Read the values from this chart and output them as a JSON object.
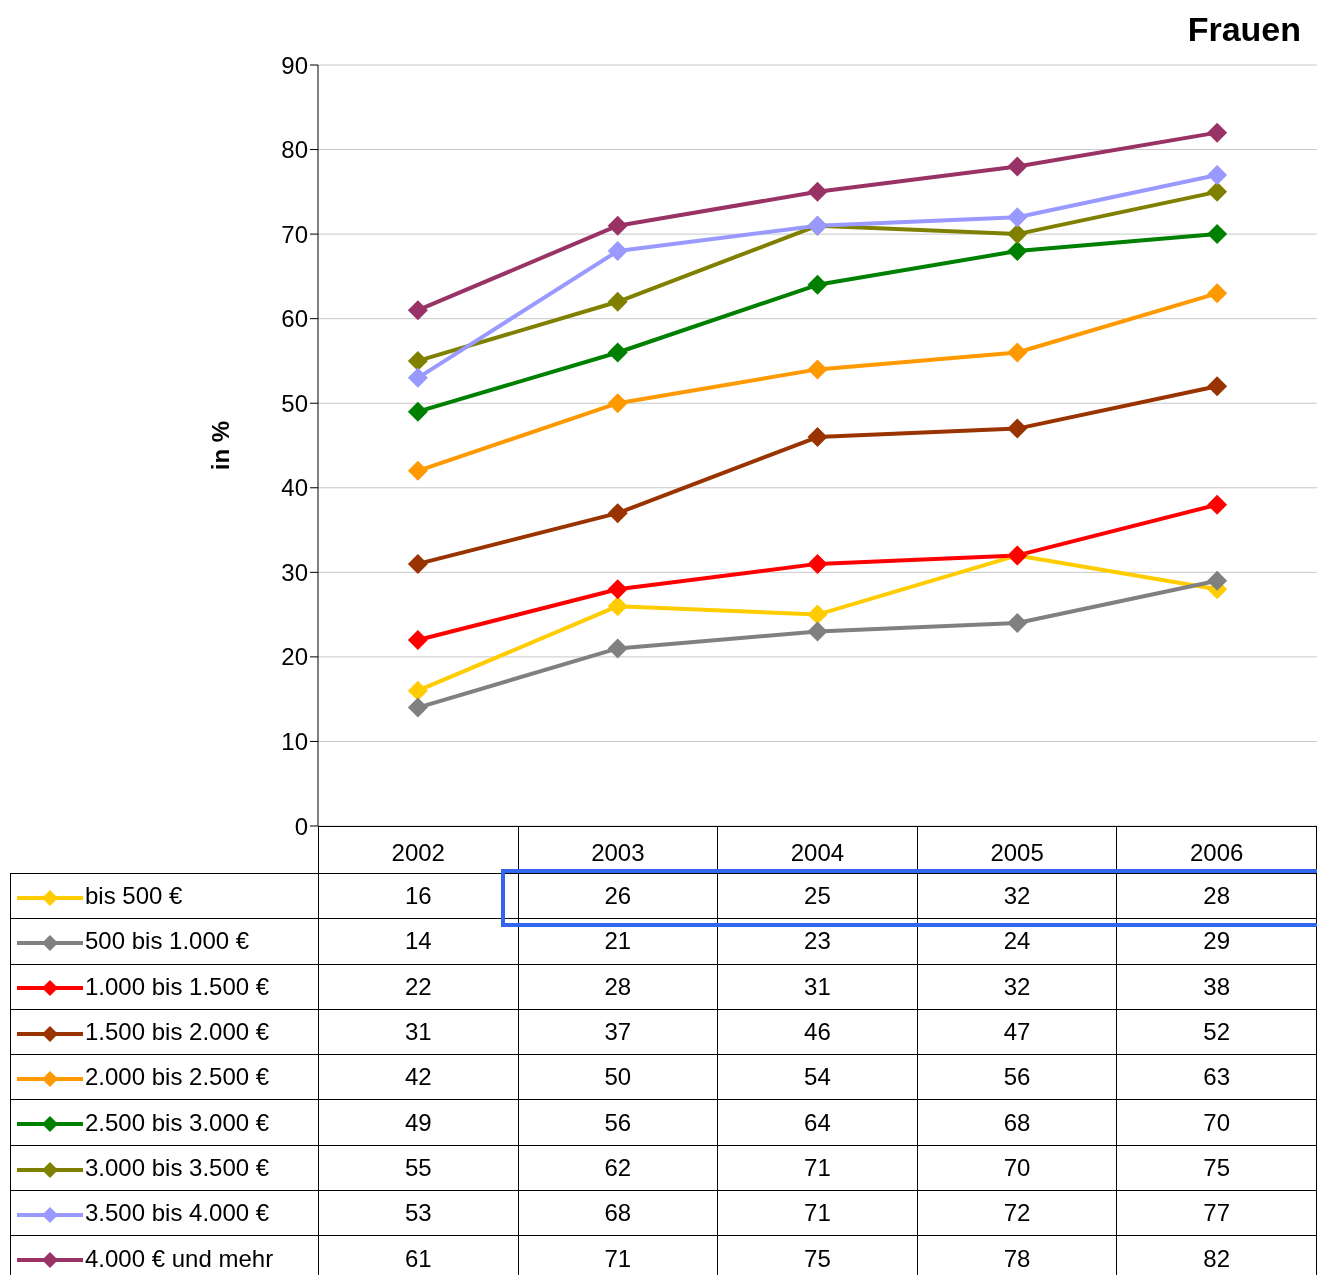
{
  "chart_data": {
    "type": "line",
    "title": "Frauen",
    "ylabel": "in %",
    "categories": [
      "2002",
      "2003",
      "2004",
      "2005",
      "2006"
    ],
    "series": [
      {
        "name": "bis 500 €",
        "color": "#ffcc00",
        "values": [
          16,
          26,
          25,
          32,
          28
        ]
      },
      {
        "name": "500 bis 1.000 €",
        "color": "#808080",
        "values": [
          14,
          21,
          23,
          24,
          29
        ]
      },
      {
        "name": "1.000 bis 1.500 €",
        "color": "#ff0000",
        "values": [
          22,
          28,
          31,
          32,
          38
        ]
      },
      {
        "name": "1.500 bis 2.000 €",
        "color": "#993300",
        "values": [
          31,
          37,
          46,
          47,
          52
        ]
      },
      {
        "name": "2.000 bis 2.500 €",
        "color": "#ff9900",
        "values": [
          42,
          50,
          54,
          56,
          63
        ]
      },
      {
        "name": "2.500 bis 3.000 €",
        "color": "#008000",
        "values": [
          49,
          56,
          64,
          68,
          70
        ]
      },
      {
        "name": "3.000 bis 3.500 €",
        "color": "#808000",
        "values": [
          55,
          62,
          71,
          70,
          75
        ]
      },
      {
        "name": "3.500 bis 4.000 €",
        "color": "#9999ff",
        "values": [
          53,
          68,
          71,
          72,
          77
        ]
      },
      {
        "name": "4.000 € und mehr",
        "color": "#993366",
        "values": [
          61,
          71,
          75,
          78,
          82
        ]
      }
    ],
    "ylim": [
      0,
      90
    ],
    "yticks": [
      0,
      10,
      20,
      30,
      40,
      50,
      60,
      70,
      80,
      90
    ],
    "grid": "y",
    "legend": "bottom",
    "marker": "diamond",
    "line_style": "solid",
    "data_labels": true
  }
}
